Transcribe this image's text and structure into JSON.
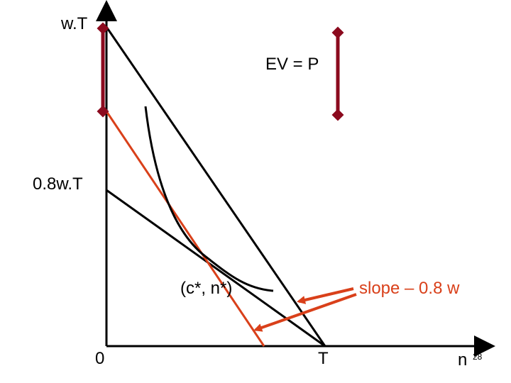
{
  "labels": {
    "y_top": "w.T",
    "y_mid": "0.8w.T",
    "origin": "0",
    "x_T": "T",
    "x_axis": "n",
    "page_number": "28",
    "ev_eq_p": "EV = P",
    "tangency": "(c*, n*)",
    "slope": "slope – 0.8 w"
  },
  "colors": {
    "axis": "#000000",
    "budget": "#000000",
    "compensated": "#d9401a",
    "ev_bar": "#8b0a1e",
    "arrow": "#d9401a"
  }
}
